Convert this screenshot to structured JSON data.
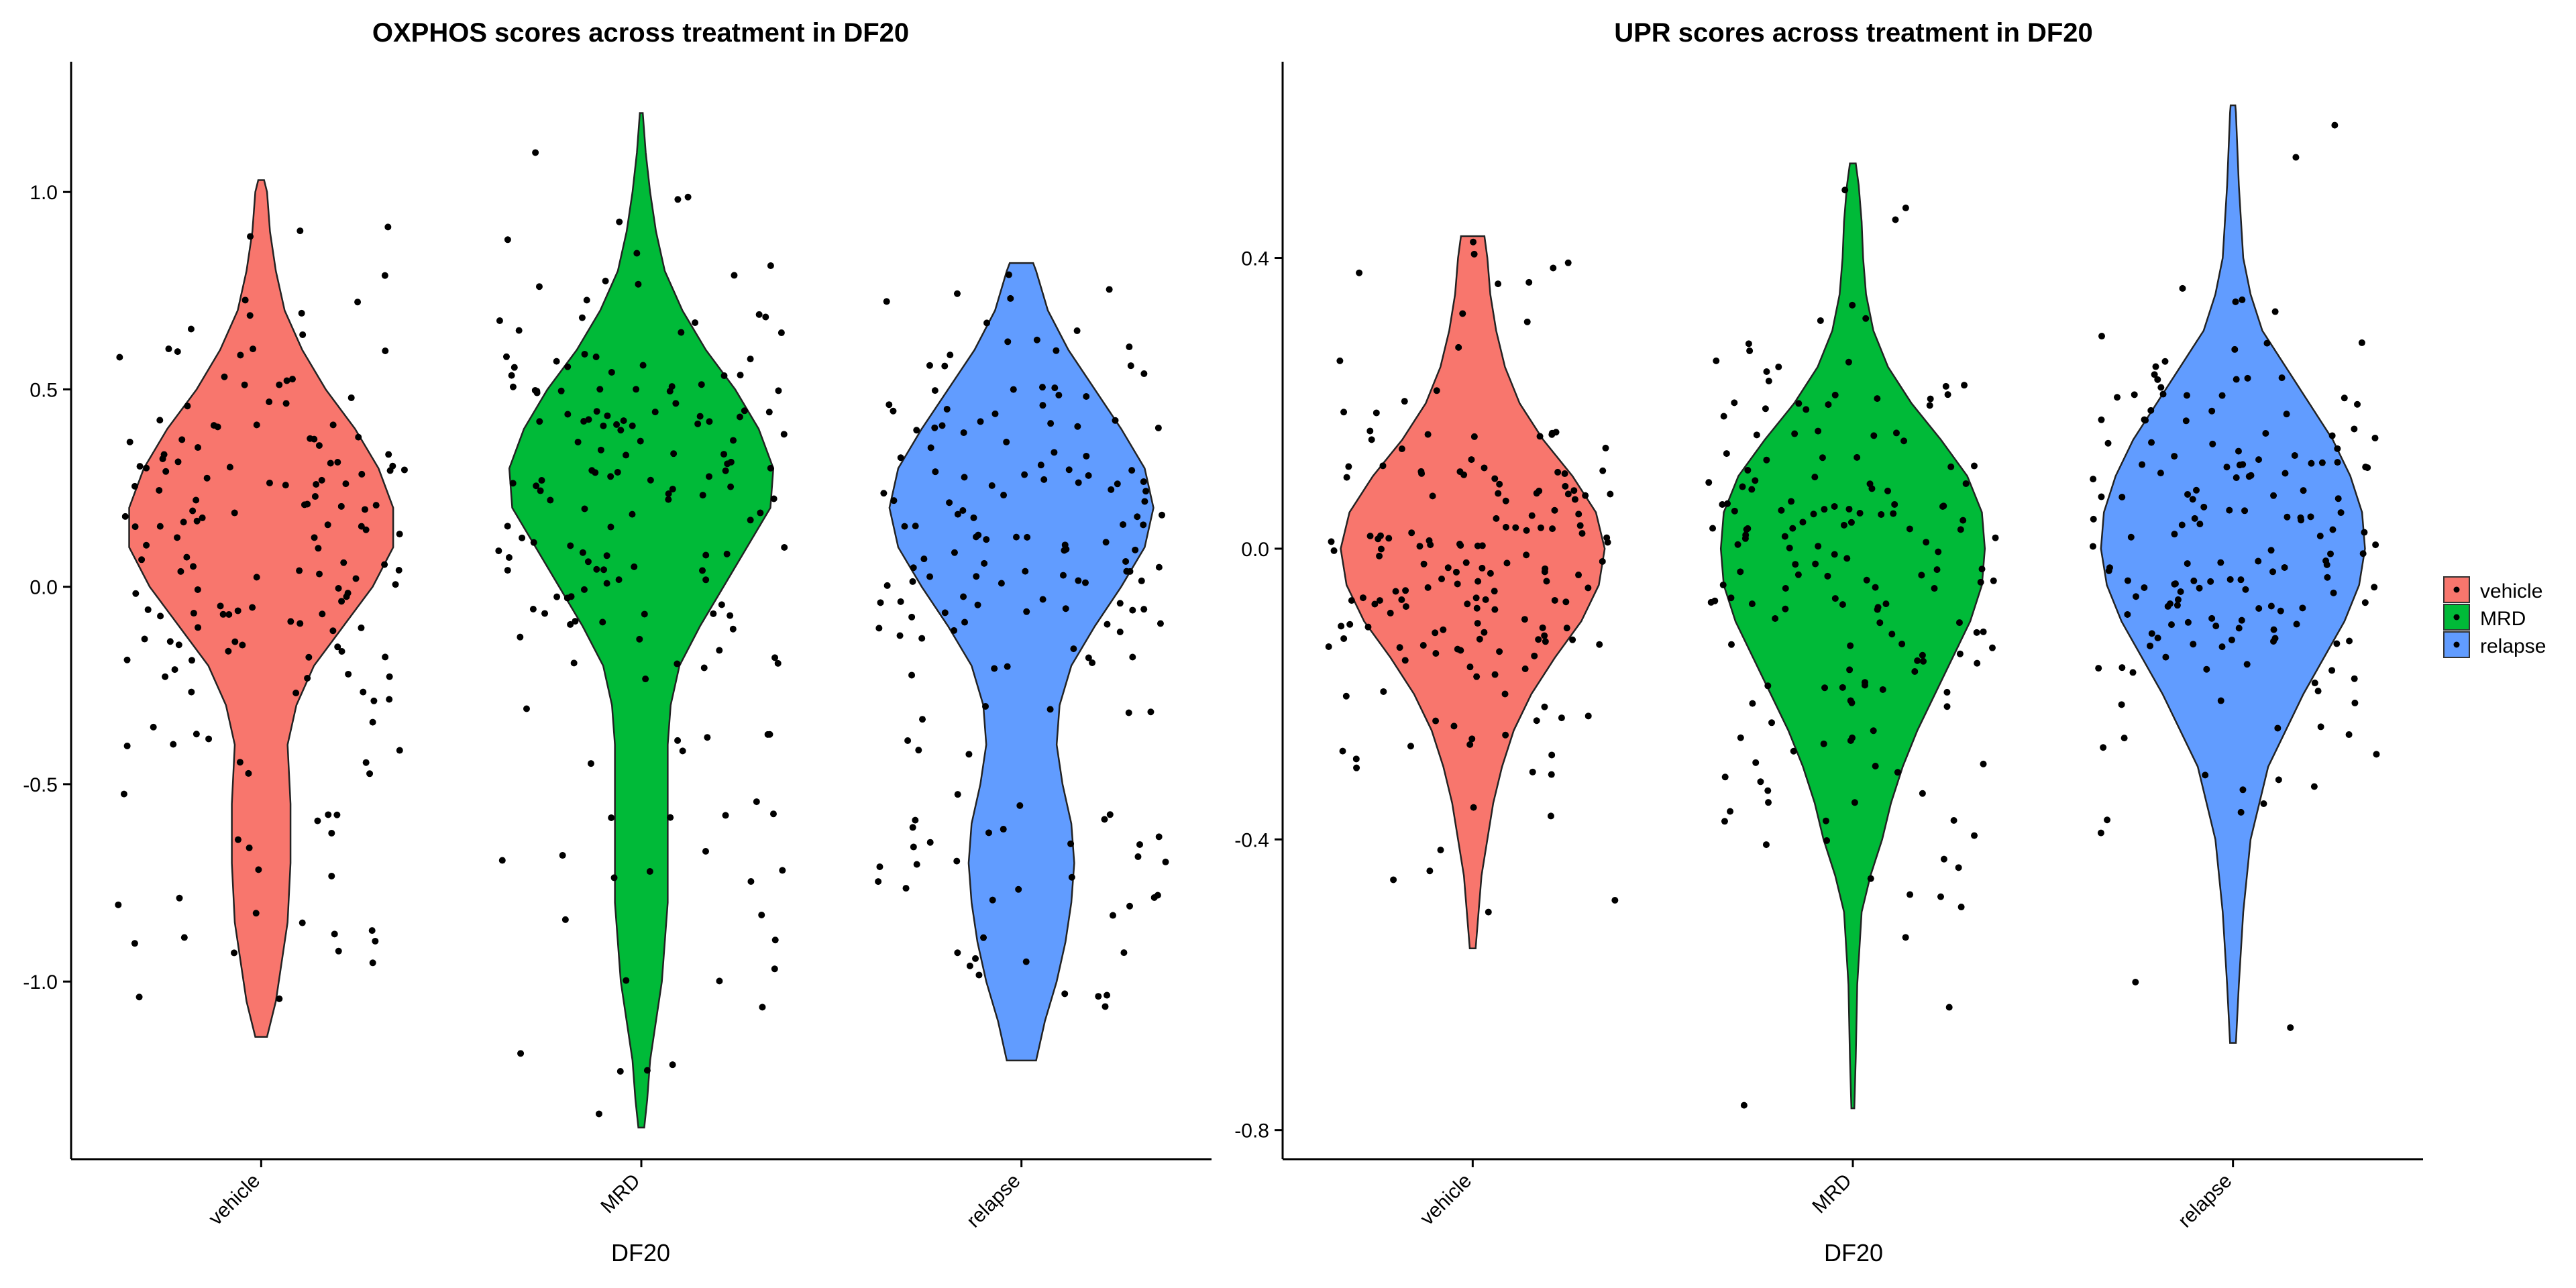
{
  "legend": {
    "position": "right",
    "items": [
      {
        "label": "vehicle",
        "color": "#F8766D"
      },
      {
        "label": "MRD",
        "color": "#00BA38"
      },
      {
        "label": "relapse",
        "color": "#619CFF"
      }
    ]
  },
  "chart_data": [
    {
      "type": "violin",
      "title": "OXPHOS scores across treatment in DF20",
      "xlabel": "DF20",
      "ylabel": "",
      "categories": [
        "vehicle",
        "MRD",
        "relapse"
      ],
      "colors": [
        "#F8766D",
        "#00BA38",
        "#619CFF"
      ],
      "ylim": [
        -1.45,
        1.33
      ],
      "yticks": [
        -1.0,
        -0.5,
        0.0,
        0.5,
        1.0
      ],
      "ytick_labels": [
        "-1.0",
        "-0.5",
        "0.0",
        "0.5",
        "1.0"
      ],
      "grid": false,
      "series": [
        {
          "category": "vehicle",
          "min": -1.14,
          "max": 1.03,
          "density": [
            [
              -1.14,
              0.02
            ],
            [
              -1.05,
              0.05
            ],
            [
              -0.95,
              0.07
            ],
            [
              -0.85,
              0.09
            ],
            [
              -0.7,
              0.1
            ],
            [
              -0.55,
              0.1
            ],
            [
              -0.4,
              0.09
            ],
            [
              -0.3,
              0.12
            ],
            [
              -0.2,
              0.18
            ],
            [
              -0.1,
              0.28
            ],
            [
              0.0,
              0.38
            ],
            [
              0.1,
              0.45
            ],
            [
              0.2,
              0.45
            ],
            [
              0.3,
              0.4
            ],
            [
              0.4,
              0.32
            ],
            [
              0.5,
              0.22
            ],
            [
              0.6,
              0.14
            ],
            [
              0.7,
              0.08
            ],
            [
              0.8,
              0.05
            ],
            [
              0.9,
              0.03
            ],
            [
              1.0,
              0.02
            ],
            [
              1.03,
              0.01
            ]
          ]
        },
        {
          "category": "MRD",
          "min": -1.37,
          "max": 1.2,
          "density": [
            [
              -1.37,
              0.01
            ],
            [
              -1.3,
              0.02
            ],
            [
              -1.2,
              0.03
            ],
            [
              -1.1,
              0.05
            ],
            [
              -1.0,
              0.07
            ],
            [
              -0.9,
              0.08
            ],
            [
              -0.8,
              0.09
            ],
            [
              -0.7,
              0.09
            ],
            [
              -0.6,
              0.09
            ],
            [
              -0.5,
              0.09
            ],
            [
              -0.4,
              0.09
            ],
            [
              -0.3,
              0.1
            ],
            [
              -0.2,
              0.13
            ],
            [
              -0.1,
              0.2
            ],
            [
              0.0,
              0.28
            ],
            [
              0.1,
              0.36
            ],
            [
              0.2,
              0.44
            ],
            [
              0.3,
              0.45
            ],
            [
              0.4,
              0.4
            ],
            [
              0.5,
              0.32
            ],
            [
              0.6,
              0.22
            ],
            [
              0.7,
              0.14
            ],
            [
              0.8,
              0.08
            ],
            [
              0.9,
              0.05
            ],
            [
              1.0,
              0.03
            ],
            [
              1.1,
              0.015
            ],
            [
              1.2,
              0.005
            ]
          ]
        },
        {
          "category": "relapse",
          "min": -1.2,
          "max": 0.82,
          "density": [
            [
              -1.2,
              0.05
            ],
            [
              -1.1,
              0.08
            ],
            [
              -1.0,
              0.12
            ],
            [
              -0.9,
              0.15
            ],
            [
              -0.8,
              0.17
            ],
            [
              -0.7,
              0.18
            ],
            [
              -0.6,
              0.17
            ],
            [
              -0.5,
              0.14
            ],
            [
              -0.4,
              0.12
            ],
            [
              -0.3,
              0.13
            ],
            [
              -0.2,
              0.17
            ],
            [
              -0.1,
              0.25
            ],
            [
              0.0,
              0.34
            ],
            [
              0.1,
              0.42
            ],
            [
              0.2,
              0.45
            ],
            [
              0.3,
              0.42
            ],
            [
              0.4,
              0.34
            ],
            [
              0.5,
              0.25
            ],
            [
              0.6,
              0.16
            ],
            [
              0.7,
              0.09
            ],
            [
              0.8,
              0.05
            ],
            [
              0.82,
              0.04
            ]
          ]
        }
      ]
    },
    {
      "type": "violin",
      "title": "UPR scores across treatment in DF20",
      "xlabel": "DF20",
      "ylabel": "",
      "categories": [
        "vehicle",
        "MRD",
        "relapse"
      ],
      "colors": [
        "#F8766D",
        "#00BA38",
        "#619CFF"
      ],
      "ylim": [
        -0.84,
        0.67
      ],
      "yticks": [
        -0.8,
        -0.4,
        0.0,
        0.4
      ],
      "ytick_labels": [
        "-0.8",
        "-0.4",
        "0.0",
        "0.4"
      ],
      "grid": false,
      "series": [
        {
          "category": "vehicle",
          "min": -0.55,
          "max": 0.43,
          "density": [
            [
              -0.55,
              0.01
            ],
            [
              -0.5,
              0.02
            ],
            [
              -0.45,
              0.03
            ],
            [
              -0.4,
              0.05
            ],
            [
              -0.35,
              0.07
            ],
            [
              -0.3,
              0.1
            ],
            [
              -0.25,
              0.14
            ],
            [
              -0.2,
              0.2
            ],
            [
              -0.15,
              0.28
            ],
            [
              -0.1,
              0.37
            ],
            [
              -0.05,
              0.43
            ],
            [
              0.0,
              0.45
            ],
            [
              0.05,
              0.42
            ],
            [
              0.1,
              0.34
            ],
            [
              0.15,
              0.24
            ],
            [
              0.2,
              0.16
            ],
            [
              0.25,
              0.11
            ],
            [
              0.3,
              0.08
            ],
            [
              0.35,
              0.06
            ],
            [
              0.4,
              0.05
            ],
            [
              0.43,
              0.04
            ]
          ]
        },
        {
          "category": "MRD",
          "min": -0.77,
          "max": 0.53,
          "density": [
            [
              -0.77,
              0.005
            ],
            [
              -0.7,
              0.01
            ],
            [
              -0.6,
              0.015
            ],
            [
              -0.5,
              0.03
            ],
            [
              -0.45,
              0.06
            ],
            [
              -0.4,
              0.1
            ],
            [
              -0.35,
              0.13
            ],
            [
              -0.3,
              0.17
            ],
            [
              -0.25,
              0.22
            ],
            [
              -0.2,
              0.28
            ],
            [
              -0.15,
              0.34
            ],
            [
              -0.1,
              0.4
            ],
            [
              -0.05,
              0.44
            ],
            [
              0.0,
              0.45
            ],
            [
              0.05,
              0.44
            ],
            [
              0.1,
              0.39
            ],
            [
              0.15,
              0.3
            ],
            [
              0.2,
              0.2
            ],
            [
              0.25,
              0.12
            ],
            [
              0.3,
              0.07
            ],
            [
              0.35,
              0.045
            ],
            [
              0.4,
              0.035
            ],
            [
              0.45,
              0.03
            ],
            [
              0.5,
              0.02
            ],
            [
              0.53,
              0.01
            ]
          ]
        },
        {
          "category": "relapse",
          "min": -0.68,
          "max": 0.61,
          "density": [
            [
              -0.68,
              0.01
            ],
            [
              -0.6,
              0.02
            ],
            [
              -0.5,
              0.035
            ],
            [
              -0.4,
              0.06
            ],
            [
              -0.3,
              0.12
            ],
            [
              -0.2,
              0.24
            ],
            [
              -0.15,
              0.31
            ],
            [
              -0.1,
              0.38
            ],
            [
              -0.05,
              0.43
            ],
            [
              0.0,
              0.45
            ],
            [
              0.05,
              0.44
            ],
            [
              0.1,
              0.4
            ],
            [
              0.15,
              0.34
            ],
            [
              0.2,
              0.26
            ],
            [
              0.25,
              0.18
            ],
            [
              0.3,
              0.1
            ],
            [
              0.35,
              0.06
            ],
            [
              0.4,
              0.035
            ],
            [
              0.5,
              0.02
            ],
            [
              0.6,
              0.01
            ],
            [
              0.61,
              0.008
            ]
          ]
        }
      ]
    }
  ]
}
